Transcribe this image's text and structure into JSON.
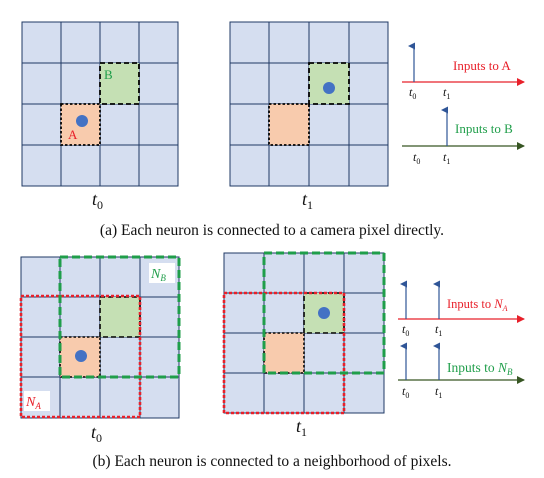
{
  "panel_a": {
    "grid_left": {
      "time_label_base": "t",
      "time_label_sub": "0",
      "label_a": "A",
      "label_b": "B"
    },
    "grid_right": {
      "time_label_base": "t",
      "time_label_sub": "1"
    },
    "timeline_a": {
      "label": "Inputs to A",
      "tick0_base": "t",
      "tick0_sub": "0",
      "tick1_base": "t",
      "tick1_sub": "1"
    },
    "timeline_b": {
      "label": "Inputs to B",
      "tick0_base": "t",
      "tick0_sub": "0",
      "tick1_base": "t",
      "tick1_sub": "1"
    },
    "caption": "(a) Each neuron is connected to a camera pixel directly."
  },
  "panel_b": {
    "grid_left": {
      "time_label_base": "t",
      "time_label_sub": "0",
      "label_na_base": "N",
      "label_na_sub": "A",
      "label_nb_base": "N",
      "label_nb_sub": "B"
    },
    "grid_right": {
      "time_label_base": "t",
      "time_label_sub": "1"
    },
    "timeline_a": {
      "label_base": "Inputs to ",
      "label_var": "N",
      "label_sub": "A",
      "tick0_base": "t",
      "tick0_sub": "0",
      "tick1_base": "t",
      "tick1_sub": "1"
    },
    "timeline_b": {
      "label_base": "Inputs to ",
      "label_var": "N",
      "label_sub": "B",
      "tick0_base": "t",
      "tick0_sub": "0",
      "tick1_base": "t",
      "tick1_sub": "1"
    },
    "caption": "(b) Each neuron is connected to a neighborhood of pixels."
  },
  "colors": {
    "grid_fill": "#d5def0",
    "grid_line": "#1f3864",
    "neuron_a_fill": "#f8cbad",
    "neuron_b_fill": "#c5e0b4",
    "dot": "#4472c4",
    "red": "#e8202a",
    "green": "#1f9e4a",
    "dark_green": "#375623",
    "arrow_blue": "#2f5597"
  }
}
